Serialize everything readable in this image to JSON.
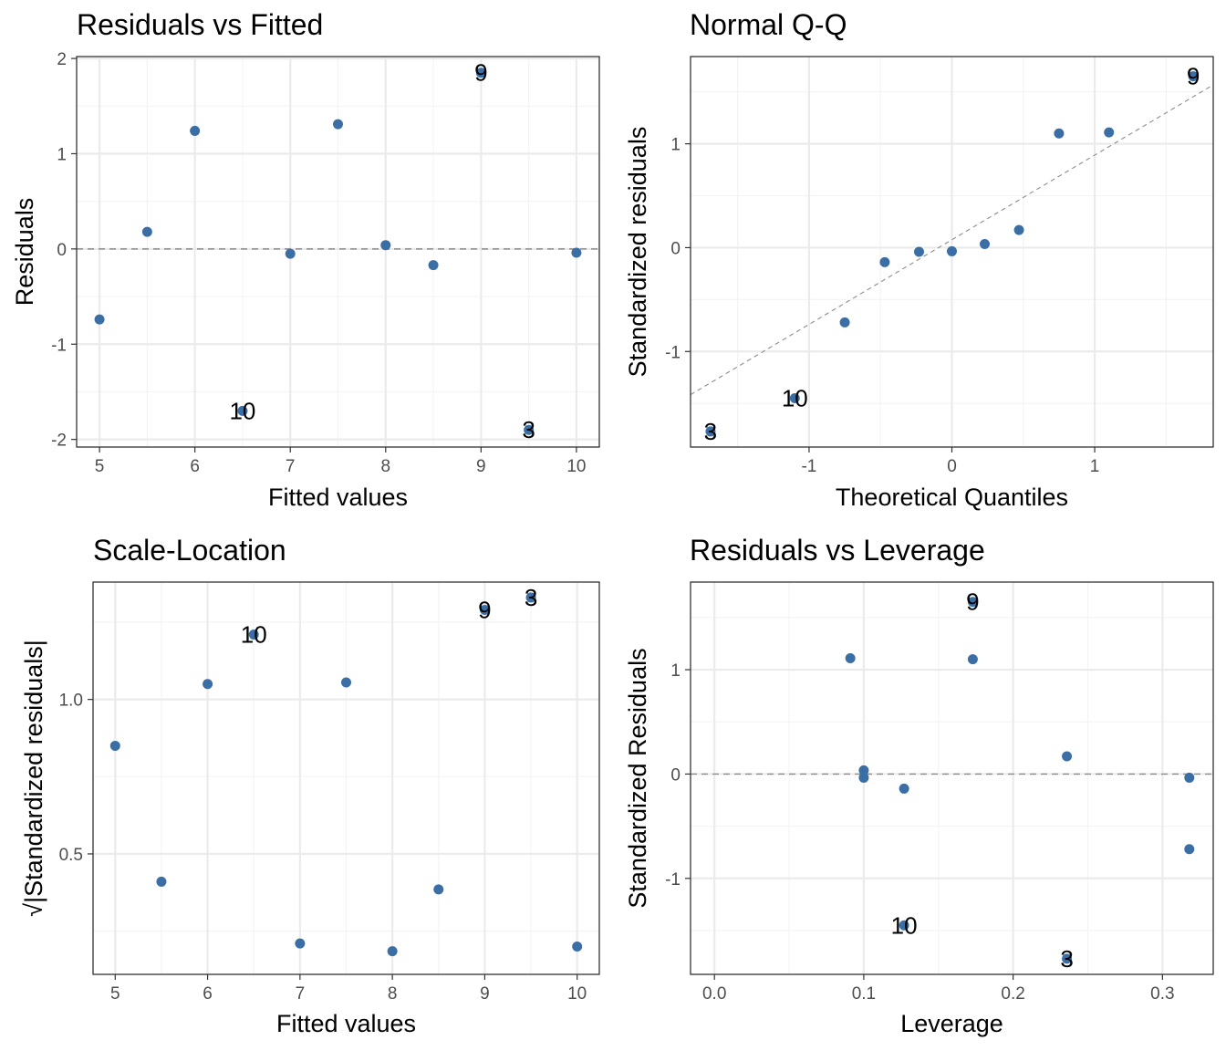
{
  "colors": {
    "point": "#3a6ea5",
    "grid_major": "#ebebeb",
    "grid_minor": "#f4f4f4",
    "panel_border": "#333333",
    "reference_line": "#8c8c8c",
    "tick_text": "#4d4d4d"
  },
  "chart_data": [
    {
      "type": "scatter",
      "title": "Residuals vs Fitted",
      "xlabel": "Fitted values",
      "ylabel": "Residuals",
      "xlim": [
        4.76,
        10.24
      ],
      "ylim": [
        -2.08,
        2.02
      ],
      "x_ticks": [
        5,
        6,
        7,
        8,
        9,
        10
      ],
      "x_tick_labels": [
        "5",
        "6",
        "7",
        "8",
        "9",
        "10"
      ],
      "y_ticks": [
        -2,
        -1,
        0,
        1,
        2
      ],
      "y_tick_labels": [
        "-2",
        "-1",
        "0",
        "1",
        "2"
      ],
      "grid": true,
      "reference_line": {
        "type": "hline",
        "y": 0
      },
      "points": [
        {
          "x": 5.0,
          "y": -0.74
        },
        {
          "x": 5.5,
          "y": 0.18
        },
        {
          "x": 6.0,
          "y": 1.24
        },
        {
          "x": 6.5,
          "y": -1.7,
          "label": "10"
        },
        {
          "x": 7.0,
          "y": -0.05
        },
        {
          "x": 7.5,
          "y": 1.31
        },
        {
          "x": 8.0,
          "y": 0.04
        },
        {
          "x": 8.5,
          "y": -0.17
        },
        {
          "x": 9.0,
          "y": 1.85,
          "label": "9"
        },
        {
          "x": 9.5,
          "y": -1.9,
          "label": "3"
        },
        {
          "x": 10.0,
          "y": -0.04
        }
      ]
    },
    {
      "type": "scatter",
      "title": "Normal Q-Q",
      "xlabel": "Theoretical Quantiles",
      "ylabel": "Standardized residuals",
      "xlim": [
        -1.83,
        1.83
      ],
      "ylim": [
        -1.92,
        1.84
      ],
      "x_ticks": [
        -1,
        0,
        1
      ],
      "x_tick_labels": [
        "-1",
        "0",
        "1"
      ],
      "y_ticks": [
        -1,
        0,
        1
      ],
      "y_tick_labels": [
        "-1",
        "0",
        "1"
      ],
      "grid": true,
      "reference_line": {
        "type": "line",
        "intercept": 0.076,
        "slope": 0.815
      },
      "points": [
        {
          "x": -1.69,
          "y": -1.77,
          "label": "3"
        },
        {
          "x": -1.1,
          "y": -1.45,
          "label": "10"
        },
        {
          "x": -0.75,
          "y": -0.72
        },
        {
          "x": -0.47,
          "y": -0.14
        },
        {
          "x": -0.23,
          "y": -0.04
        },
        {
          "x": 0.0,
          "y": -0.035
        },
        {
          "x": 0.23,
          "y": 0.035
        },
        {
          "x": 0.47,
          "y": 0.17
        },
        {
          "x": 0.75,
          "y": 1.1
        },
        {
          "x": 1.1,
          "y": 1.11
        },
        {
          "x": 1.69,
          "y": 1.65,
          "label": "9"
        }
      ]
    },
    {
      "type": "scatter",
      "title": "Scale-Location",
      "xlabel": "Fitted values",
      "ylabel": "√|Standardized residuals|",
      "xlim": [
        4.76,
        10.24
      ],
      "ylim": [
        0.11,
        1.38
      ],
      "x_ticks": [
        5,
        6,
        7,
        8,
        9,
        10
      ],
      "x_tick_labels": [
        "5",
        "6",
        "7",
        "8",
        "9",
        "10"
      ],
      "y_ticks": [
        0.5,
        1.0
      ],
      "y_tick_labels": [
        "0.5",
        "1.0"
      ],
      "grid": true,
      "points": [
        {
          "x": 5.0,
          "y": 0.85
        },
        {
          "x": 5.5,
          "y": 0.41
        },
        {
          "x": 6.0,
          "y": 1.05
        },
        {
          "x": 6.5,
          "y": 1.21,
          "label": "10"
        },
        {
          "x": 7.0,
          "y": 0.21
        },
        {
          "x": 7.5,
          "y": 1.055
        },
        {
          "x": 8.0,
          "y": 0.185
        },
        {
          "x": 8.5,
          "y": 0.385
        },
        {
          "x": 9.0,
          "y": 1.29,
          "label": "9"
        },
        {
          "x": 9.5,
          "y": 1.33,
          "label": "3"
        },
        {
          "x": 10.0,
          "y": 0.2
        }
      ]
    },
    {
      "type": "scatter",
      "title": "Residuals vs Leverage",
      "xlabel": "Leverage",
      "ylabel": "Standardized Residuals",
      "xlim": [
        -0.016,
        0.334
      ],
      "ylim": [
        -1.92,
        1.84
      ],
      "x_ticks": [
        0.0,
        0.1,
        0.2,
        0.3
      ],
      "x_tick_labels": [
        "0.0",
        "0.1",
        "0.2",
        "0.3"
      ],
      "y_ticks": [
        -1,
        0,
        1
      ],
      "y_tick_labels": [
        "-1",
        "0",
        "1"
      ],
      "grid": true,
      "reference_line": {
        "type": "hline",
        "y": 0
      },
      "points": [
        {
          "x": 0.091,
          "y": 1.11
        },
        {
          "x": 0.1,
          "y": 0.035
        },
        {
          "x": 0.1,
          "y": -0.035
        },
        {
          "x": 0.127,
          "y": -0.14
        },
        {
          "x": 0.127,
          "y": -1.45,
          "label": "10"
        },
        {
          "x": 0.173,
          "y": 1.1
        },
        {
          "x": 0.173,
          "y": 1.65,
          "label": "9"
        },
        {
          "x": 0.236,
          "y": 0.17
        },
        {
          "x": 0.236,
          "y": -1.77,
          "label": "3"
        },
        {
          "x": 0.318,
          "y": -0.035
        },
        {
          "x": 0.318,
          "y": -0.72
        }
      ]
    }
  ]
}
